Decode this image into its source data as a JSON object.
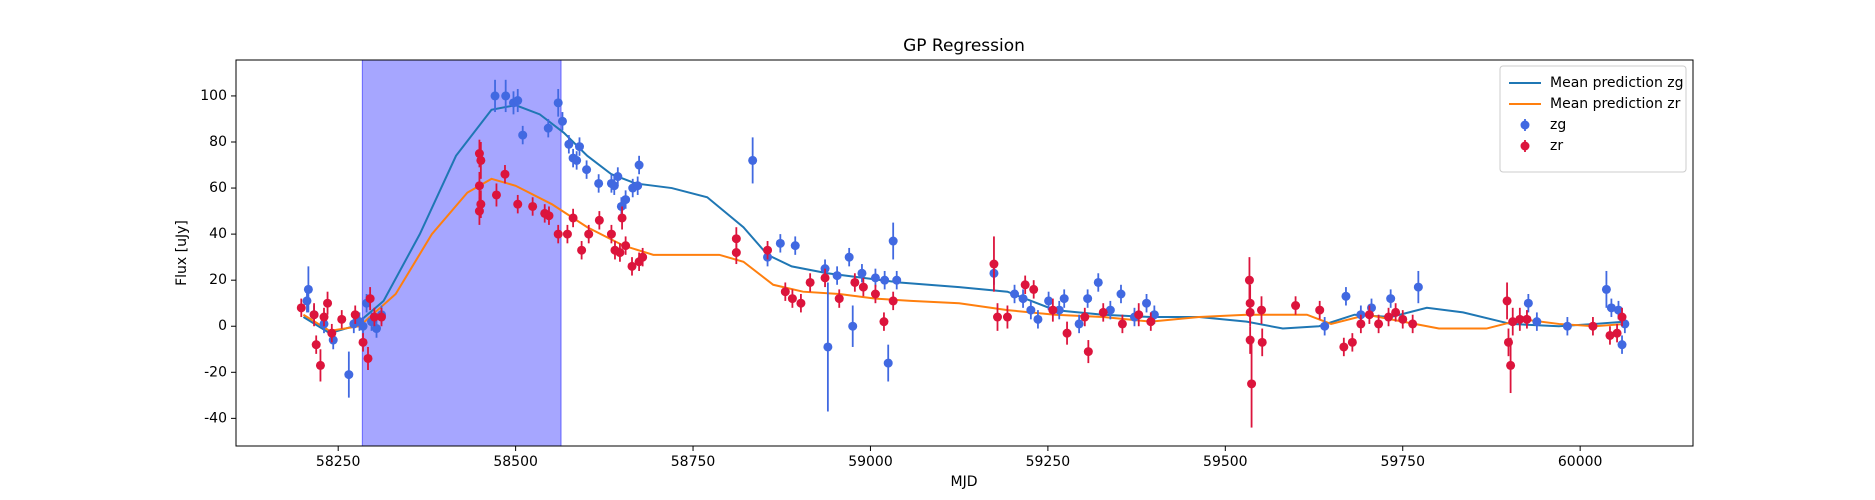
{
  "chart_data": {
    "type": "line",
    "title": "GP Regression",
    "x_label": "MJD",
    "y_label": "Flux [uJy]",
    "xlim": [
      58106,
      60159
    ],
    "ylim": [
      -52,
      115.6
    ],
    "xticks": [
      58250,
      58500,
      58750,
      59000,
      59250,
      59500,
      59750,
      60000
    ],
    "yticks": [
      -40,
      -20,
      0,
      20,
      40,
      60,
      80,
      100
    ],
    "span": {
      "x": [
        58284,
        58564
      ],
      "color": "#0000ff",
      "opacity": 0.35
    },
    "legend": "upper right",
    "series": [
      {
        "name": "Mean prediction zg",
        "type": "line",
        "color": "#1f77b4",
        "x": [
          58201,
          58238,
          58272,
          58314,
          58365,
          58416,
          58466,
          58500,
          58534,
          58568,
          58601,
          58635,
          58669,
          58720,
          58770,
          58821,
          58855,
          58889,
          58939,
          58990,
          59041,
          59125,
          59193,
          59260,
          59328,
          59395,
          59463,
          59530,
          59581,
          59632,
          59682,
          59733,
          59784,
          59835,
          59902,
          59970,
          60020,
          60064
        ],
        "values": [
          4,
          -3,
          0,
          11,
          40,
          74,
          94,
          96,
          92,
          84,
          74,
          66,
          62,
          60,
          56,
          43,
          31,
          26,
          23,
          21,
          19,
          17,
          15,
          7,
          5,
          4,
          4,
          2,
          -1,
          0,
          5,
          4,
          8,
          6,
          1,
          0,
          1,
          2
        ]
      },
      {
        "name": "Mean prediction zr",
        "type": "line",
        "color": "#ff7f0e",
        "x": [
          58201,
          58238,
          58280,
          58331,
          58382,
          58432,
          58466,
          58500,
          58551,
          58601,
          58652,
          58694,
          58736,
          58787,
          58821,
          58863,
          58905,
          58956,
          59007,
          59057,
          59125,
          59193,
          59260,
          59328,
          59395,
          59463,
          59530,
          59581,
          59615,
          59649,
          59700,
          59750,
          59801,
          59868,
          59919,
          59970,
          60020,
          60064
        ],
        "values": [
          5,
          -2,
          0,
          14,
          40,
          58,
          64,
          61,
          53,
          43,
          35,
          31,
          31,
          31,
          28,
          18,
          15,
          14,
          12,
          11,
          10,
          7,
          5,
          4,
          2,
          4,
          5,
          5,
          5,
          1,
          5,
          2,
          -1,
          -1,
          3,
          1,
          0,
          1
        ]
      },
      {
        "name": "zg",
        "type": "errorbar",
        "color": "#4169e1",
        "x": [
          58206,
          58208,
          58216,
          58230,
          58243,
          58265,
          58272,
          58280,
          58285,
          58290,
          58297,
          58304,
          58311,
          58471,
          58486,
          58497,
          58503,
          58510,
          58546,
          58560,
          58566,
          58575,
          58581,
          58586,
          58590,
          58600,
          58617,
          58635,
          58639,
          58644,
          58649,
          58655,
          58665,
          58672,
          58674,
          58834,
          58855,
          58873,
          58894,
          58936,
          58940,
          58953,
          58970,
          58975,
          58988,
          59007,
          59020,
          59025,
          59032,
          59037,
          59174,
          59203,
          59215,
          59226,
          59236,
          59251,
          59266,
          59273,
          59294,
          59306,
          59321,
          59338,
          59353,
          59372,
          59389,
          59400,
          59640,
          59670,
          59691,
          59706,
          59733,
          59772,
          59927,
          59939,
          59982,
          60037,
          60044,
          60054,
          60063,
          60059
        ],
        "values": [
          11,
          16,
          5,
          1,
          -6,
          -21,
          1,
          2,
          0,
          10,
          2,
          -1,
          5,
          100,
          100,
          97,
          98,
          83,
          86,
          97,
          89,
          79,
          73,
          72,
          78,
          68,
          62,
          62,
          61,
          65,
          52,
          55,
          60,
          61,
          70,
          72,
          30,
          36,
          35,
          25,
          -9,
          22,
          30,
          0,
          23,
          21,
          20,
          -16,
          37,
          20,
          23,
          14,
          12,
          7,
          3,
          11,
          7,
          12,
          1,
          12,
          19,
          7,
          14,
          4,
          10,
          5,
          0,
          13,
          5,
          8,
          12,
          17,
          10,
          2,
          0,
          16,
          8,
          7,
          1,
          -8
        ],
        "errors": [
          5,
          10,
          4,
          4,
          4,
          10,
          4,
          4,
          4,
          4,
          4,
          4,
          4,
          7,
          7,
          5,
          5,
          4,
          4,
          6,
          4,
          4,
          4,
          4,
          4,
          4,
          4,
          4,
          4,
          4,
          4,
          4,
          4,
          4,
          4,
          10,
          4,
          4,
          4,
          4,
          28,
          4,
          4,
          9,
          4,
          4,
          4,
          8,
          8,
          4,
          5,
          4,
          4,
          4,
          4,
          4,
          4,
          4,
          4,
          4,
          4,
          4,
          4,
          4,
          4,
          4,
          4,
          4,
          4,
          4,
          4,
          7,
          4,
          4,
          4,
          8,
          4,
          4,
          4,
          4
        ]
      },
      {
        "name": "zr",
        "type": "errorbar",
        "color": "#dc143c",
        "x": [
          58198,
          58216,
          58219,
          58225,
          58230,
          58235,
          58241,
          58255,
          58274,
          58285,
          58292,
          58295,
          58301,
          58311,
          58449,
          58451,
          58449,
          58449,
          58451,
          58473,
          58485,
          58503,
          58524,
          58541,
          58547,
          58560,
          58573,
          58581,
          58593,
          58603,
          58618,
          58635,
          58640,
          58647,
          58650,
          58655,
          58664,
          58674,
          58679,
          58811,
          58811,
          58855,
          58880,
          58890,
          58902,
          58915,
          58936,
          58956,
          58978,
          58990,
          59007,
          59019,
          59032,
          59174,
          59179,
          59193,
          59218,
          59230,
          59257,
          59277,
          59302,
          59307,
          59328,
          59355,
          59378,
          59395,
          59534,
          59535,
          59535,
          59535,
          59537,
          59551,
          59552,
          59599,
          59633,
          59667,
          59679,
          59691,
          59703,
          59716,
          59730,
          59740,
          59750,
          59764,
          59897,
          59899,
          59902,
          59905,
          59915,
          59925,
          60018,
          60042,
          60052,
          60059
        ],
        "values": [
          8,
          5,
          -8,
          -17,
          4,
          10,
          -3,
          3,
          5,
          -7,
          -14,
          12,
          4,
          4,
          75,
          72,
          61,
          50,
          53,
          57,
          66,
          53,
          52,
          49,
          48,
          40,
          40,
          47,
          33,
          40,
          46,
          40,
          33,
          32,
          47,
          35,
          26,
          28,
          30,
          38,
          32,
          33,
          15,
          12,
          10,
          19,
          21,
          12,
          19,
          17,
          14,
          2,
          11,
          27,
          4,
          4,
          18,
          16,
          7,
          -3,
          4,
          -11,
          6,
          1,
          5,
          2,
          20,
          10,
          6,
          -6,
          -25,
          7,
          -7,
          9,
          7,
          -9,
          -7,
          1,
          5,
          1,
          4,
          6,
          3,
          1,
          11,
          -7,
          -17,
          2,
          3,
          3,
          0,
          -4,
          -3,
          4
        ],
        "errors": [
          4,
          5,
          4,
          7,
          4,
          5,
          4,
          4,
          4,
          4,
          5,
          5,
          4,
          4,
          6,
          8,
          6,
          6,
          6,
          5,
          4,
          4,
          4,
          4,
          4,
          4,
          4,
          4,
          4,
          4,
          4,
          4,
          4,
          4,
          5,
          4,
          4,
          4,
          4,
          5,
          5,
          4,
          4,
          4,
          4,
          4,
          4,
          4,
          4,
          4,
          4,
          4,
          4,
          12,
          6,
          5,
          4,
          4,
          5,
          5,
          4,
          5,
          4,
          4,
          5,
          4,
          10,
          8,
          6,
          6,
          19,
          6,
          6,
          4,
          4,
          4,
          4,
          4,
          4,
          4,
          4,
          4,
          4,
          4,
          8,
          6,
          12,
          6,
          5,
          4,
          4,
          4,
          4,
          4
        ]
      }
    ]
  }
}
